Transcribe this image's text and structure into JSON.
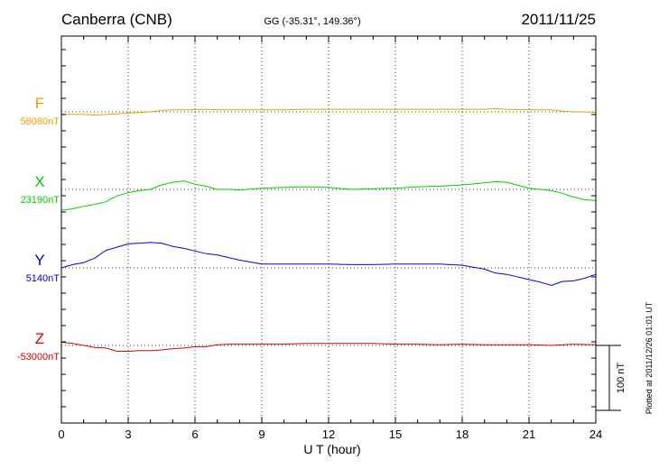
{
  "header": {
    "station": "Canberra (CNB)",
    "coords": "GG (-35.31°, 149.36°)",
    "date": "2011/11/25"
  },
  "side_note": "Plotted at 2011/12/26 01:01 UT",
  "scale_bar": {
    "label": "100 nT",
    "value_nT": 100
  },
  "colors": {
    "F": "#e8a000",
    "X": "#00d000",
    "Y": "#0000dd",
    "Z": "#dd0000",
    "axis": "#000000",
    "grid": "#000000"
  },
  "chart_data": {
    "type": "line",
    "title": "Canberra (CNB)",
    "xlabel": "U T (hour)",
    "xlim": [
      0,
      24
    ],
    "xticks": [
      "0",
      "3",
      "6",
      "9",
      "12",
      "15",
      "18",
      "21",
      "24"
    ],
    "grid": true,
    "series": [
      {
        "name": "F",
        "baseline_label": "58080nT",
        "x": [
          0,
          0.5,
          1,
          1.5,
          2,
          2.5,
          3,
          3.5,
          4,
          4.5,
          5,
          5.5,
          6,
          6.5,
          7,
          7.5,
          8,
          9,
          10,
          11,
          12,
          13,
          14,
          15,
          16,
          17,
          18,
          19,
          19.5,
          20,
          21,
          22,
          22.5,
          23,
          23.5,
          24
        ],
        "y": [
          58076,
          58076,
          58076,
          58075,
          58076,
          58077,
          58078,
          58079,
          58080,
          58082,
          58083,
          58083,
          58083,
          58084,
          58083,
          58083,
          58083,
          58083,
          58083,
          58084,
          58084,
          58084,
          58084,
          58084,
          58084,
          58084,
          58084,
          58084,
          58085,
          58084,
          58083,
          58083,
          58081,
          58080,
          58080,
          58079
        ]
      },
      {
        "name": "X",
        "baseline_label": "23190nT",
        "x": [
          0,
          0.5,
          1,
          1.5,
          2,
          2.5,
          3,
          3.5,
          4,
          4.5,
          5,
          5.5,
          6,
          6.5,
          7,
          7.5,
          8,
          9,
          10,
          11,
          12,
          13,
          14,
          15,
          16,
          17,
          18,
          19,
          19.5,
          20,
          21,
          22,
          22.5,
          23,
          23.5,
          24
        ],
        "y": [
          23158,
          23160,
          23164,
          23167,
          23171,
          23180,
          23185,
          23188,
          23190,
          23197,
          23201,
          23203,
          23198,
          23195,
          23190,
          23190,
          23189,
          23192,
          23193,
          23194,
          23193,
          23190,
          23191,
          23192,
          23194,
          23195,
          23197,
          23200,
          23202,
          23201,
          23192,
          23188,
          23184,
          23178,
          23174,
          23173
        ]
      },
      {
        "name": "Y",
        "baseline_label": "5140nT",
        "x": [
          0,
          0.5,
          1,
          1.5,
          2,
          2.5,
          3,
          3.5,
          4,
          4.5,
          5,
          5.5,
          6,
          6.5,
          7,
          7.5,
          8,
          9,
          10,
          11,
          12,
          13,
          14,
          15,
          16,
          17,
          18,
          19,
          19.5,
          20,
          21,
          21.5,
          22,
          22.5,
          23,
          23.5,
          24
        ],
        "y": [
          5140,
          5145,
          5148,
          5155,
          5167,
          5172,
          5177,
          5178,
          5179,
          5178,
          5173,
          5170,
          5166,
          5162,
          5160,
          5156,
          5152,
          5146,
          5146,
          5146,
          5146,
          5145,
          5145,
          5146,
          5146,
          5146,
          5144,
          5138,
          5132,
          5130,
          5122,
          5118,
          5113,
          5119,
          5120,
          5124,
          5130
        ]
      },
      {
        "name": "Z",
        "baseline_label": "-53000nT",
        "x": [
          0,
          0.5,
          1,
          1.5,
          2,
          2.5,
          3,
          3.5,
          4,
          4.5,
          5,
          5.5,
          6,
          6.5,
          7,
          7.5,
          8,
          9,
          10,
          11,
          12,
          13,
          14,
          15,
          16,
          17,
          18,
          19,
          20,
          21,
          22,
          23,
          24
        ],
        "y": [
          -52995,
          -52997,
          -53000,
          -53003,
          -53004,
          -53009,
          -53009,
          -53008,
          -53008,
          -53007,
          -53005,
          -53004,
          -53002,
          -53002,
          -52999,
          -52998,
          -52998,
          -52998,
          -52998,
          -52997,
          -52997,
          -52997,
          -52997,
          -52998,
          -52998,
          -52999,
          -52998,
          -52999,
          -52999,
          -52999,
          -53000,
          -52998,
          -52999
        ]
      }
    ]
  }
}
